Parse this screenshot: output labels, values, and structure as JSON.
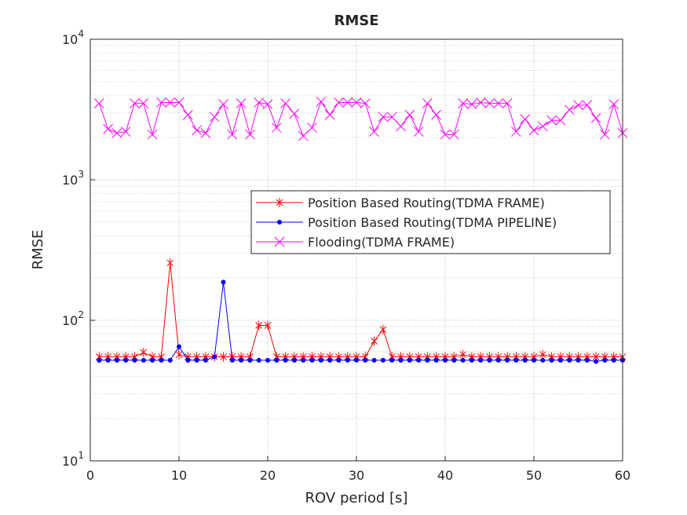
{
  "chart_data": {
    "type": "line",
    "title": "RMSE",
    "xlabel": "ROV period [s]",
    "ylabel": "RMSE",
    "x": [
      1,
      2,
      3,
      4,
      5,
      6,
      7,
      8,
      9,
      10,
      11,
      12,
      13,
      14,
      15,
      16,
      17,
      18,
      19,
      20,
      21,
      22,
      23,
      24,
      25,
      26,
      27,
      28,
      29,
      30,
      31,
      32,
      33,
      34,
      35,
      36,
      37,
      38,
      39,
      40,
      41,
      42,
      43,
      44,
      45,
      46,
      47,
      48,
      49,
      50,
      51,
      52,
      53,
      54,
      55,
      56,
      57,
      58,
      59,
      60
    ],
    "xlim": [
      0,
      60
    ],
    "xticks": [
      0,
      10,
      20,
      30,
      40,
      50,
      60
    ],
    "ylim": [
      10,
      10000
    ],
    "yscale": "log",
    "yticks": [
      {
        "value": 10,
        "label": "10^1"
      },
      {
        "value": 100,
        "label": "10^2"
      },
      {
        "value": 1000,
        "label": "10^3"
      },
      {
        "value": 10000,
        "label": "10^4"
      }
    ],
    "grid": true,
    "legend_position": "center-right",
    "series": [
      {
        "name": "Position Based Routing(TDMA FRAME)",
        "color": "#ff0000",
        "marker": "asterisk",
        "values": [
          55,
          55,
          55,
          55,
          55,
          59,
          55,
          55,
          256,
          57,
          55,
          55,
          55,
          55,
          55,
          55,
          55,
          55,
          92,
          92,
          55,
          55,
          55,
          55,
          55,
          55,
          55,
          55,
          55,
          55,
          55,
          71,
          86,
          55,
          55,
          55,
          55,
          55,
          55,
          55,
          55,
          57,
          55,
          55,
          55,
          55,
          55,
          55,
          55,
          55,
          57,
          55,
          55,
          55,
          55,
          55,
          55,
          55,
          55,
          55
        ]
      },
      {
        "name": "Position Based Routing(TDMA PIPELINE)",
        "color": "#0000ff",
        "marker": "dot",
        "values": [
          52,
          52,
          52,
          52,
          52,
          52,
          52,
          52,
          52,
          65,
          52,
          52,
          52,
          55,
          187,
          52,
          52,
          52,
          52,
          52,
          52,
          52,
          52,
          52,
          52,
          52,
          52,
          52,
          52,
          52,
          52,
          52,
          52,
          52,
          52,
          52,
          52,
          52,
          52,
          52,
          52,
          52,
          52,
          52,
          52,
          52,
          52,
          52,
          52,
          52,
          52,
          52,
          52,
          52,
          52,
          52,
          51,
          52,
          52,
          52
        ]
      },
      {
        "name": "Flooding(TDMA FRAME)",
        "color": "#ff00ff",
        "marker": "x",
        "values": [
          3500,
          2300,
          2150,
          2200,
          3500,
          3500,
          2100,
          3550,
          3550,
          3550,
          2900,
          2250,
          2150,
          2800,
          3450,
          2100,
          3500,
          2100,
          3550,
          3450,
          2350,
          3500,
          2950,
          2050,
          2350,
          3600,
          2900,
          3550,
          3550,
          3550,
          3500,
          2200,
          2800,
          2800,
          2400,
          2900,
          2200,
          3500,
          2900,
          2100,
          2100,
          3500,
          3450,
          3550,
          3500,
          3500,
          3500,
          2200,
          2700,
          2250,
          2400,
          2650,
          2650,
          3150,
          3400,
          3400,
          2750,
          2100,
          3450,
          2150
        ]
      }
    ]
  }
}
